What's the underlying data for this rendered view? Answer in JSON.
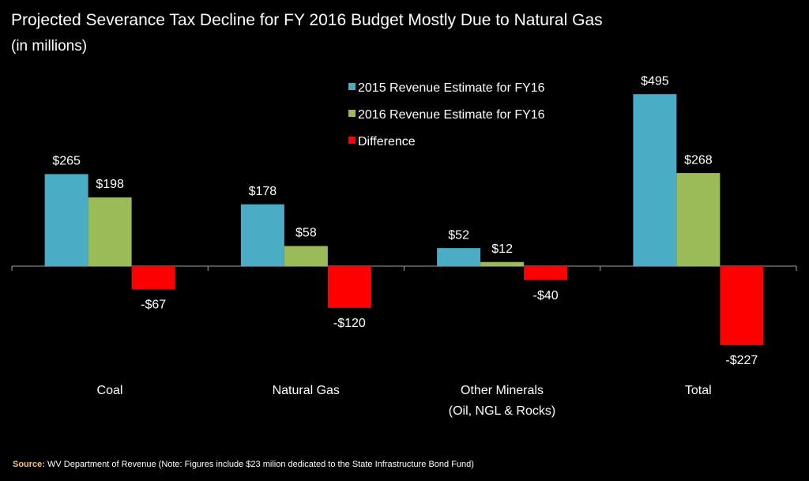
{
  "chart_data": {
    "type": "bar",
    "title": "Projected Severance Tax Decline for FY 2016 Budget Mostly Due to Natural Gas",
    "subtitle": "(in millions)",
    "categories": [
      "Coal",
      "Natural Gas",
      "Other Minerals\n(Oil, NGL & Rocks)",
      "Total"
    ],
    "series": [
      {
        "name": "2015 Revenue Estimate for FY16",
        "color": "#4bacc6",
        "values": [
          265,
          178,
          52,
          495
        ],
        "value_labels": [
          "$265",
          "$178",
          "$52",
          "$495"
        ]
      },
      {
        "name": "2016 Revenue Estimate for FY16",
        "color": "#9bbb59",
        "values": [
          198,
          58,
          12,
          268
        ],
        "value_labels": [
          "$198",
          "$58",
          "$12",
          "$268"
        ]
      },
      {
        "name": "Difference",
        "color": "#ff0000",
        "values": [
          -67,
          -120,
          -40,
          -227
        ],
        "value_labels": [
          "-$67",
          "-$120",
          "-$40",
          "-$227"
        ]
      }
    ],
    "ylim": [
      -300,
      550
    ],
    "legend": "top",
    "source_label": "Source:",
    "source": "WV Department of Revenue (Note: Figures include $23 milion dedicated to the State Infrastructure Bond Fund)"
  }
}
